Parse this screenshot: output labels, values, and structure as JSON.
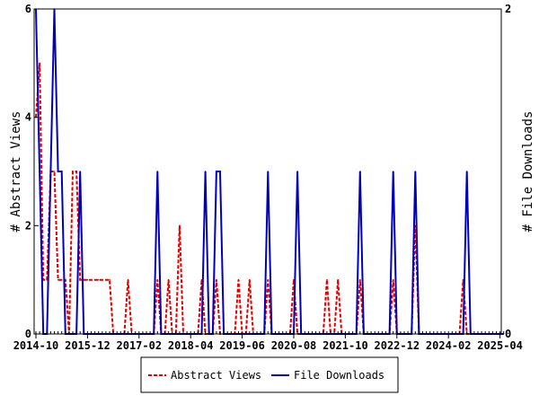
{
  "chart_data": {
    "type": "line",
    "x_unit": "month",
    "x_start": "2014-10",
    "x_end": "2025-04",
    "x_ticks": [
      "2014-10",
      "2015-12",
      "2017-02",
      "2018-04",
      "2019-06",
      "2020-08",
      "2021-10",
      "2022-12",
      "2024-02",
      "2025-04"
    ],
    "ylabel_left": "# Abstract Views",
    "ylabel_right": "# File Downloads",
    "ylim_left": [
      0,
      6
    ],
    "ylim_right": [
      0,
      2
    ],
    "yticks_left": [
      "0",
      "2",
      "4",
      "6"
    ],
    "yticks_right": [
      "0",
      "2"
    ],
    "legend_position": "bottom-center",
    "series": [
      {
        "name": "Abstract Views",
        "axis": "left",
        "color": "#dd0000",
        "style": "dashed",
        "points": [
          [
            0,
            4
          ],
          [
            1,
            5
          ],
          [
            2,
            1
          ],
          [
            3,
            1
          ],
          [
            4,
            3
          ],
          [
            5,
            3
          ],
          [
            6,
            1
          ],
          [
            7,
            1
          ],
          [
            8,
            1
          ],
          [
            10,
            3
          ],
          [
            11,
            3
          ],
          [
            12,
            1
          ],
          [
            13,
            1
          ],
          [
            14,
            1
          ],
          [
            15,
            1
          ],
          [
            16,
            1
          ],
          [
            17,
            1
          ],
          [
            18,
            1
          ],
          [
            19,
            1
          ],
          [
            20,
            1
          ],
          [
            25,
            1
          ],
          [
            33,
            1
          ],
          [
            36,
            1
          ],
          [
            39,
            2
          ],
          [
            45,
            1
          ],
          [
            49,
            1
          ],
          [
            55,
            1
          ],
          [
            58,
            1
          ],
          [
            63,
            1
          ],
          [
            70,
            1
          ],
          [
            79,
            1
          ],
          [
            82,
            1
          ],
          [
            88,
            1
          ],
          [
            97,
            1
          ],
          [
            103,
            2
          ],
          [
            116,
            1
          ]
        ]
      },
      {
        "name": "File Downloads",
        "axis": "right",
        "color": "#0000bb",
        "style": "solid",
        "points": [
          [
            0,
            2
          ],
          [
            1,
            1
          ],
          [
            4,
            1
          ],
          [
            5,
            2
          ],
          [
            6,
            1
          ],
          [
            7,
            1
          ],
          [
            12,
            1
          ],
          [
            33,
            1
          ],
          [
            46,
            1
          ],
          [
            49,
            1
          ],
          [
            50,
            1
          ],
          [
            63,
            1
          ],
          [
            71,
            1
          ],
          [
            88,
            1
          ],
          [
            97,
            1
          ],
          [
            103,
            1
          ],
          [
            117,
            1
          ]
        ]
      }
    ]
  }
}
